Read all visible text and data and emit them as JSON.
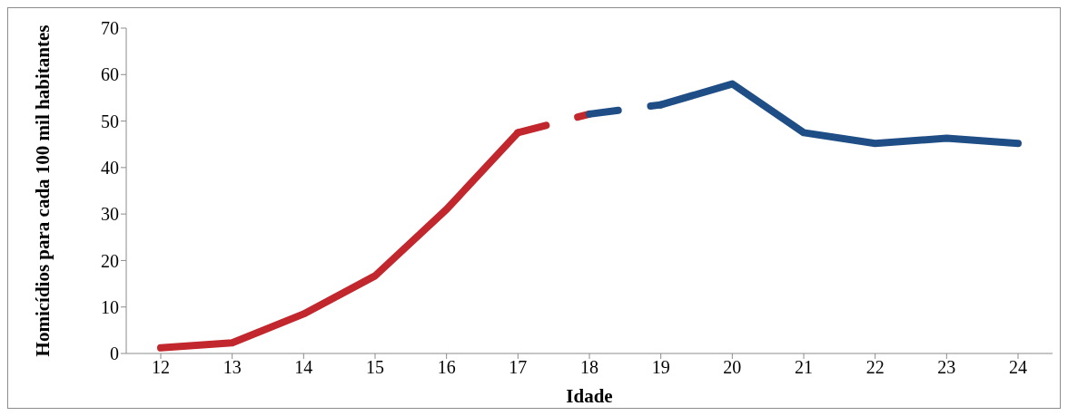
{
  "chart_data": {
    "type": "line",
    "xlabel": "Idade",
    "ylabel": "Homicídios para cada 100 mil habitantes",
    "categories": [
      "12",
      "13",
      "14",
      "15",
      "16",
      "17",
      "18",
      "19",
      "20",
      "21",
      "22",
      "23",
      "24"
    ],
    "series": [
      {
        "color": "#c1272d",
        "line_style": "solid",
        "values": [
          1.2,
          2.3,
          8.5,
          16.7,
          31,
          47.5,
          null,
          null,
          null,
          null,
          null,
          null,
          null
        ]
      },
      {
        "color": "#c1272d",
        "line_style": "dashed",
        "values": [
          null,
          null,
          null,
          null,
          null,
          47.5,
          51.5,
          null,
          null,
          null,
          null,
          null,
          null
        ]
      },
      {
        "color": "#1f4e86",
        "line_style": "dashed",
        "values": [
          null,
          null,
          null,
          null,
          null,
          null,
          51.5,
          53.5,
          null,
          null,
          null,
          null,
          null
        ]
      },
      {
        "color": "#1f4e86",
        "line_style": "solid",
        "values": [
          null,
          null,
          null,
          null,
          null,
          null,
          null,
          53.5,
          58,
          47.5,
          45.2,
          46.3,
          45.2
        ]
      }
    ],
    "ylim": [
      0,
      70
    ],
    "yticks": [
      0,
      10,
      20,
      30,
      40,
      50,
      60,
      70
    ],
    "grid": false,
    "marker": "none"
  }
}
